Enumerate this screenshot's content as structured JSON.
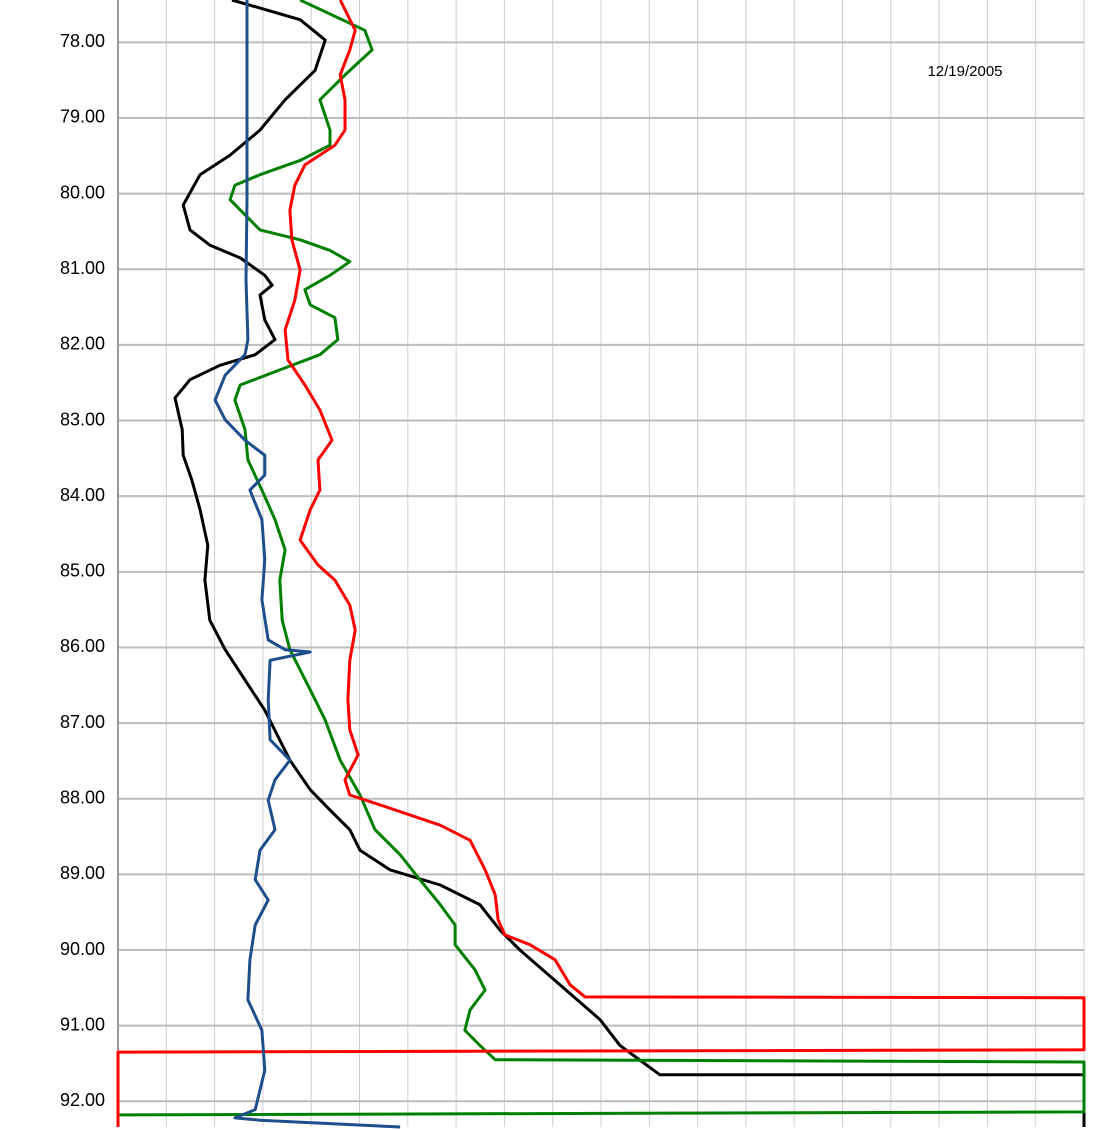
{
  "chart_data": {
    "type": "line",
    "annotation": "12/19/2005",
    "ylim": [
      77.44,
      92.34
    ],
    "yinverted": true,
    "yticks": [
      {
        "value": 78,
        "label": "78.00"
      },
      {
        "value": 79,
        "label": "79.00"
      },
      {
        "value": 80,
        "label": "80.00"
      },
      {
        "value": 81,
        "label": "81.00"
      },
      {
        "value": 82,
        "label": "82.00"
      },
      {
        "value": 83,
        "label": "83.00"
      },
      {
        "value": 84,
        "label": "84.00"
      },
      {
        "value": 85,
        "label": "85.00"
      },
      {
        "value": 86,
        "label": "86.00"
      },
      {
        "value": 87,
        "label": "87.00"
      },
      {
        "value": 88,
        "label": "88.00"
      },
      {
        "value": 89,
        "label": "89.00"
      },
      {
        "value": 90,
        "label": "90.00"
      },
      {
        "value": 91,
        "label": "91.00"
      },
      {
        "value": 92,
        "label": "92.00"
      }
    ],
    "xlim": [
      0,
      20
    ],
    "xticks": [
      0,
      1,
      2,
      3,
      4,
      5,
      6,
      7,
      8,
      9,
      10,
      11,
      12,
      13,
      14,
      15,
      16,
      17,
      18,
      19,
      20
    ],
    "grid": true,
    "series": [
      {
        "color": "#000000",
        "x": [
          2.36,
          3.77,
          4.29,
          4.08,
          3.46,
          2.94,
          2.32,
          1.7,
          1.35,
          1.49,
          1.9,
          2.53,
          3.04,
          3.19,
          2.94,
          3.04,
          3.25,
          2.84,
          2.11,
          1.49,
          1.18,
          1.33,
          1.35,
          1.53,
          1.7,
          1.86,
          1.8,
          1.9,
          2.22,
          2.63,
          3.04,
          3.56,
          3.98,
          4.39,
          4.8,
          5.01,
          5.63,
          6.67,
          7.49,
          7.91,
          8.32,
          9.15,
          9.98,
          10.39,
          11.22,
          20,
          20
        ],
        "values": [
          77.44,
          77.7,
          77.97,
          78.37,
          78.76,
          79.16,
          79.49,
          79.75,
          80.15,
          80.48,
          80.68,
          80.85,
          81.08,
          81.21,
          81.34,
          81.67,
          81.93,
          82.13,
          82.27,
          82.46,
          82.7,
          83.12,
          83.46,
          83.79,
          84.18,
          84.65,
          85.11,
          85.64,
          86.03,
          86.43,
          86.83,
          87.49,
          87.88,
          88.15,
          88.41,
          88.68,
          88.94,
          89.14,
          89.4,
          89.74,
          90.0,
          90.46,
          90.92,
          91.26,
          91.65,
          91.65,
          92.34
        ]
      },
      {
        "color": "#008000",
        "x": [
          3.77,
          5.11,
          5.26,
          4.7,
          4.18,
          4.39,
          4.39,
          3.77,
          2.94,
          2.42,
          2.32,
          2.63,
          2.94,
          3.77,
          4.39,
          4.8,
          4.39,
          3.87,
          3.98,
          4.49,
          4.55,
          4.18,
          3.35,
          2.53,
          2.42,
          2.63,
          2.69,
          2.98,
          3.25,
          3.46,
          3.35,
          3.4,
          3.56,
          3.98,
          4.29,
          4.6,
          5.01,
          5.32,
          5.84,
          6.25,
          6.67,
          6.98,
          6.98,
          7.39,
          7.6,
          7.29,
          7.18,
          7.49,
          7.81,
          20,
          20,
          0
        ],
        "values": [
          77.44,
          77.84,
          78.1,
          78.43,
          78.76,
          79.16,
          79.36,
          79.56,
          79.75,
          79.89,
          80.08,
          80.28,
          80.48,
          80.61,
          80.75,
          80.9,
          81.08,
          81.27,
          81.47,
          81.64,
          81.93,
          82.13,
          82.33,
          82.53,
          82.73,
          83.12,
          83.52,
          83.92,
          84.31,
          84.71,
          85.11,
          85.64,
          86.03,
          86.56,
          86.96,
          87.49,
          87.95,
          88.41,
          88.74,
          89.07,
          89.4,
          89.67,
          89.93,
          90.26,
          90.53,
          90.79,
          91.06,
          91.26,
          91.45,
          91.48,
          92.14,
          92.18
        ]
      },
      {
        "color": "#ff0000",
        "x": [
          4.6,
          4.91,
          4.8,
          4.6,
          4.7,
          4.7,
          4.49,
          3.87,
          3.66,
          3.56,
          3.6,
          3.77,
          3.66,
          3.46,
          3.52,
          3.87,
          4.18,
          4.43,
          4.14,
          4.18,
          3.98,
          3.77,
          4.14,
          4.49,
          4.8,
          4.91,
          4.8,
          4.76,
          4.8,
          4.97,
          4.7,
          4.8,
          5.42,
          6.67,
          7.29,
          7.6,
          7.81,
          7.87,
          8.01,
          8.53,
          9.05,
          9.36,
          9.67,
          20,
          20,
          0,
          0
        ],
        "values": [
          77.44,
          77.84,
          78.1,
          78.43,
          78.76,
          79.16,
          79.36,
          79.62,
          79.89,
          80.22,
          80.61,
          81.01,
          81.41,
          81.8,
          82.2,
          82.53,
          82.86,
          83.26,
          83.52,
          83.92,
          84.18,
          84.58,
          84.91,
          85.11,
          85.44,
          85.77,
          86.17,
          86.69,
          87.09,
          87.42,
          87.75,
          87.95,
          88.08,
          88.35,
          88.55,
          88.94,
          89.27,
          89.6,
          89.8,
          89.93,
          90.13,
          90.46,
          90.62,
          90.63,
          91.32,
          91.35,
          92.34
        ]
      },
      {
        "color": "#1f4e8c",
        "x": [
          2.67,
          2.67,
          2.65,
          2.69,
          2.63,
          2.22,
          2.01,
          2.22,
          2.63,
          3.04,
          3.04,
          2.73,
          2.98,
          3.04,
          2.98,
          3.11,
          3.46,
          3.98,
          3.15,
          3.11,
          3.15,
          3.56,
          3.25,
          3.11,
          3.25,
          2.94,
          2.84,
          3.11,
          2.84,
          2.73,
          2.69,
          2.98,
          3.04,
          2.84,
          2.42,
          2.94,
          5.84
        ],
        "values": [
          77.44,
          80.08,
          81.14,
          81.93,
          82.13,
          82.4,
          82.73,
          82.99,
          83.26,
          83.46,
          83.72,
          83.92,
          84.31,
          84.84,
          85.37,
          85.9,
          86.03,
          86.06,
          86.17,
          86.69,
          87.22,
          87.49,
          87.75,
          88.02,
          88.41,
          88.68,
          89.07,
          89.34,
          89.67,
          90.13,
          90.66,
          91.06,
          91.59,
          92.11,
          92.22,
          92.25,
          92.34
        ]
      }
    ]
  }
}
